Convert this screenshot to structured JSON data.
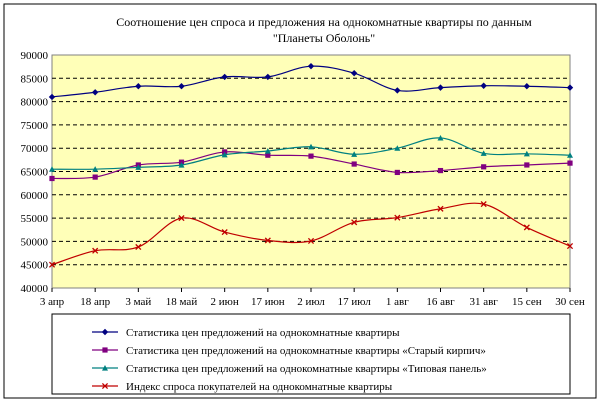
{
  "chart_data": {
    "type": "line",
    "title_lines": [
      "Соотношение цен спроса и предложения на однокомнатные квартиры по данным",
      "\"Планеты Оболонь\""
    ],
    "categories": [
      "3 апр",
      "18 апр",
      "3 май",
      "18 май",
      "2 июн",
      "17 июн",
      "2 июл",
      "17 июл",
      "1 авг",
      "16 авг",
      "31 авг",
      "15 сен",
      "30 сен"
    ],
    "ylim": [
      40000,
      90000
    ],
    "y_ticks": [
      "40000",
      "45000",
      "50000",
      "55000",
      "60000",
      "65000",
      "70000",
      "75000",
      "80000",
      "85000",
      "90000"
    ],
    "grid": "horizontal dashed",
    "legend_position": "bottom",
    "plot_background": "#ffffb8",
    "series": [
      {
        "name": "Статистика цен предложений на однокомнатные квартиры",
        "color": "#000080",
        "marker": "diamond",
        "values": [
          81000,
          82000,
          83300,
          83300,
          85300,
          85300,
          87600,
          86100,
          82400,
          83000,
          83400,
          83300,
          83000
        ]
      },
      {
        "name": "Статистика цен предложений на однокомнатные квартиры «Старый кирпич»",
        "color": "#800080",
        "marker": "square",
        "values": [
          63500,
          63800,
          66400,
          67000,
          69200,
          68500,
          68300,
          66600,
          64800,
          65200,
          66000,
          66400,
          66800
        ]
      },
      {
        "name": "Статистика цен предложений на однокомнатные квартиры «Типовая панель»",
        "color": "#008080",
        "marker": "triangle",
        "values": [
          65500,
          65500,
          65900,
          66400,
          68600,
          69400,
          70300,
          68700,
          70000,
          72200,
          68900,
          68800,
          68500
        ]
      },
      {
        "name": "Индекс спроса покупателей на однокомнатные квартиры",
        "color": "#c00000",
        "marker": "x",
        "values": [
          45000,
          48000,
          48800,
          55000,
          52000,
          50200,
          50100,
          54100,
          55100,
          57000,
          58000,
          53000,
          49000
        ]
      }
    ]
  }
}
